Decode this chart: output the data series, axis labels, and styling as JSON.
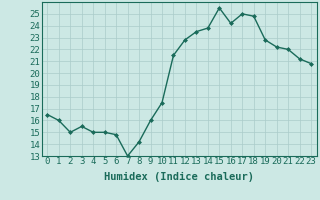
{
  "title": "",
  "xlabel": "Humidex (Indice chaleur)",
  "ylabel": "",
  "x": [
    0,
    1,
    2,
    3,
    4,
    5,
    6,
    7,
    8,
    9,
    10,
    11,
    12,
    13,
    14,
    15,
    16,
    17,
    18,
    19,
    20,
    21,
    22,
    23
  ],
  "y": [
    16.5,
    16.0,
    15.0,
    15.5,
    15.0,
    15.0,
    14.8,
    13.0,
    14.2,
    16.0,
    17.5,
    21.5,
    22.8,
    23.5,
    23.8,
    25.5,
    24.2,
    25.0,
    24.8,
    22.8,
    22.2,
    22.0,
    21.2,
    20.8
  ],
  "line_color": "#1a6b5a",
  "marker": "D",
  "marker_size": 2.0,
  "bg_color": "#cce8e4",
  "grid_color": "#aaccca",
  "tick_color": "#1a6b5a",
  "label_color": "#1a6b5a",
  "ylim": [
    13,
    26
  ],
  "xlim": [
    -0.5,
    23.5
  ],
  "yticks": [
    13,
    14,
    15,
    16,
    17,
    18,
    19,
    20,
    21,
    22,
    23,
    24,
    25
  ],
  "xticks": [
    0,
    1,
    2,
    3,
    4,
    5,
    6,
    7,
    8,
    9,
    10,
    11,
    12,
    13,
    14,
    15,
    16,
    17,
    18,
    19,
    20,
    21,
    22,
    23
  ],
  "xlabel_fontsize": 7.5,
  "tick_fontsize": 6.5,
  "line_width": 1.0
}
